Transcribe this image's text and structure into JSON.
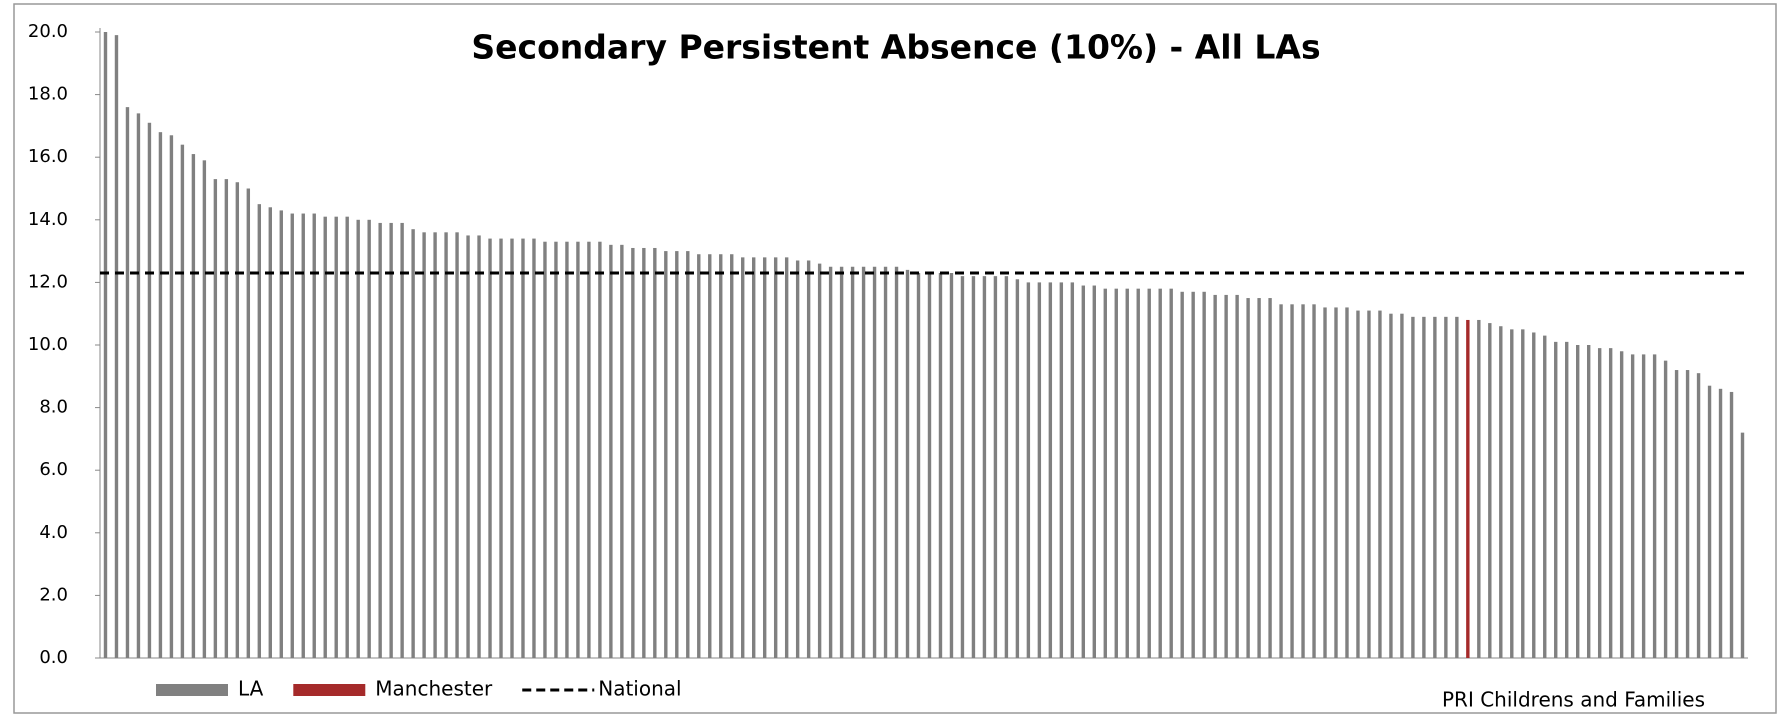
{
  "chart_data": {
    "type": "bar",
    "title": "Secondary Persistent Absence (10%) - All LAs",
    "source": "PRI Childrens and Families",
    "ylim": [
      0,
      20
    ],
    "yticks": [
      {
        "value": 0,
        "label": "0.0"
      },
      {
        "value": 2,
        "label": "2.0"
      },
      {
        "value": 4,
        "label": "4.0"
      },
      {
        "value": 6,
        "label": "6.0"
      },
      {
        "value": 8,
        "label": "8.0"
      },
      {
        "value": 10,
        "label": "10.0"
      },
      {
        "value": 12,
        "label": "12.0"
      },
      {
        "value": 14,
        "label": "14.0"
      },
      {
        "value": 16,
        "label": "16.0"
      },
      {
        "value": 18,
        "label": "18.0"
      },
      {
        "value": 20,
        "label": "20.0"
      }
    ],
    "grid": false,
    "legend": "bottom-left",
    "series": [
      {
        "name": "LA",
        "color": "#808080",
        "values": [
          20.0,
          19.9,
          17.6,
          17.4,
          17.1,
          16.8,
          16.7,
          16.4,
          16.1,
          15.9,
          15.3,
          15.3,
          15.2,
          15.0,
          14.5,
          14.4,
          14.3,
          14.2,
          14.2,
          14.2,
          14.1,
          14.1,
          14.1,
          14.0,
          14.0,
          13.9,
          13.9,
          13.9,
          13.7,
          13.6,
          13.6,
          13.6,
          13.6,
          13.5,
          13.5,
          13.4,
          13.4,
          13.4,
          13.4,
          13.4,
          13.3,
          13.3,
          13.3,
          13.3,
          13.3,
          13.3,
          13.2,
          13.2,
          13.1,
          13.1,
          13.1,
          13.0,
          13.0,
          13.0,
          12.9,
          12.9,
          12.9,
          12.9,
          12.8,
          12.8,
          12.8,
          12.8,
          12.8,
          12.7,
          12.7,
          12.6,
          12.5,
          12.5,
          12.5,
          12.5,
          12.5,
          12.5,
          12.5,
          12.4,
          12.3,
          12.3,
          12.3,
          12.3,
          12.2,
          12.2,
          12.2,
          12.2,
          12.2,
          12.1,
          12.0,
          12.0,
          12.0,
          12.0,
          12.0,
          11.9,
          11.9,
          11.8,
          11.8,
          11.8,
          11.8,
          11.8,
          11.8,
          11.8,
          11.7,
          11.7,
          11.7,
          11.6,
          11.6,
          11.6,
          11.5,
          11.5,
          11.5,
          11.3,
          11.3,
          11.3,
          11.3,
          11.2,
          11.2,
          11.2,
          11.1,
          11.1,
          11.1,
          11.0,
          11.0,
          10.9,
          10.9,
          10.9,
          10.9,
          10.9,
          null,
          10.8,
          10.7,
          10.6,
          10.5,
          10.5,
          10.4,
          10.3,
          10.1,
          10.1,
          10.0,
          10.0,
          9.9,
          9.9,
          9.8,
          9.7,
          9.7,
          9.7,
          9.5,
          9.2,
          9.2,
          9.1,
          8.7,
          8.6,
          8.5,
          7.2
        ]
      },
      {
        "name": "Manchester",
        "color": "#a52a2a",
        "values": [
          null,
          null,
          null,
          null,
          null,
          null,
          null,
          null,
          null,
          null,
          null,
          null,
          null,
          null,
          null,
          null,
          null,
          null,
          null,
          null,
          null,
          null,
          null,
          null,
          null,
          null,
          null,
          null,
          null,
          null,
          null,
          null,
          null,
          null,
          null,
          null,
          null,
          null,
          null,
          null,
          null,
          null,
          null,
          null,
          null,
          null,
          null,
          null,
          null,
          null,
          null,
          null,
          null,
          null,
          null,
          null,
          null,
          null,
          null,
          null,
          null,
          null,
          null,
          null,
          null,
          null,
          null,
          null,
          null,
          null,
          null,
          null,
          null,
          null,
          null,
          null,
          null,
          null,
          null,
          null,
          null,
          null,
          null,
          null,
          null,
          null,
          null,
          null,
          null,
          null,
          null,
          null,
          null,
          null,
          null,
          null,
          null,
          null,
          null,
          null,
          null,
          null,
          null,
          null,
          null,
          null,
          null,
          null,
          null,
          null,
          null,
          null,
          null,
          null,
          null,
          null,
          null,
          null,
          null,
          null,
          null,
          null,
          null,
          null,
          10.8,
          null,
          null,
          null,
          null,
          null,
          null,
          null,
          null,
          null,
          null,
          null,
          null,
          null,
          null,
          null,
          null,
          null,
          null,
          null,
          null,
          null,
          null,
          null,
          null,
          null
        ]
      }
    ],
    "reference_lines": [
      {
        "name": "National",
        "value": 12.3,
        "color": "#000000",
        "style": "dashed"
      }
    ]
  }
}
